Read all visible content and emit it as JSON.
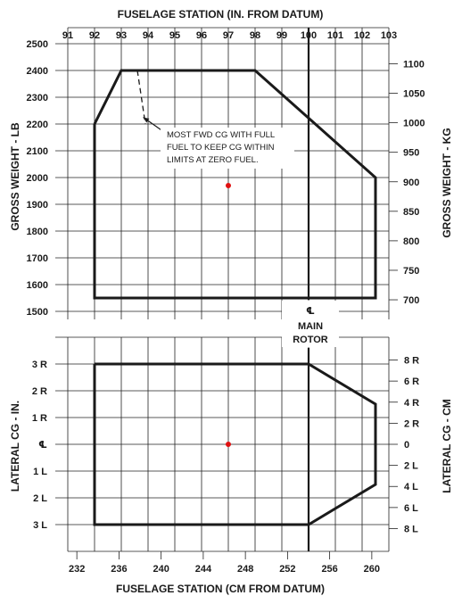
{
  "chart_data": [
    {
      "type": "line",
      "name": "weight-cg-envelope",
      "top_axis": {
        "label": "FUSELAGE STATION (IN. FROM DATUM)",
        "ticks": [
          "91",
          "92",
          "93",
          "94",
          "95",
          "96",
          "97",
          "98",
          "99",
          "100",
          "101",
          "102",
          "103"
        ],
        "range": [
          91,
          103
        ]
      },
      "left_axis": {
        "label": "GROSS WEIGHT - LB",
        "ticks": [
          "2500",
          "2400",
          "2300",
          "2200",
          "2100",
          "2000",
          "1900",
          "1800",
          "1700",
          "1600",
          "1500"
        ],
        "range": [
          1500,
          2500
        ]
      },
      "right_axis": {
        "label": "GROSS WEIGHT - KG",
        "ticks": [
          "1100",
          "1050",
          "1000",
          "950",
          "900",
          "850",
          "800",
          "750",
          "700"
        ],
        "values": [
          1100,
          1050,
          1000,
          950,
          900,
          850,
          800,
          750,
          700
        ]
      },
      "envelope": {
        "x_in": [
          92.0,
          93.0,
          98.0,
          102.5,
          102.5,
          92.0,
          92.0
        ],
        "y_lb": [
          2200,
          2400,
          2400,
          2000,
          1550,
          1550,
          2200
        ]
      },
      "fwd_full_fuel_line": {
        "x_in": [
          93.6,
          93.9
        ],
        "y_lb": [
          2400,
          2200
        ]
      },
      "note_lines": [
        "MOST FWD CG WITH FULL",
        "FUEL TO KEEP CG WITHIN",
        "LIMITS AT ZERO FUEL."
      ],
      "point": {
        "x_in": 97.0,
        "y_lb": 1970,
        "color": "#e01010"
      },
      "grid": true
    },
    {
      "type": "line",
      "name": "lateral-cg-envelope",
      "left_axis": {
        "label": "LATERAL CG - IN.",
        "ticks": [
          "3 R",
          "2 R",
          "1 R",
          "℄",
          "1 L",
          "2 L",
          "3 L"
        ],
        "values": [
          3,
          2,
          1,
          0,
          -1,
          -2,
          -3
        ]
      },
      "right_axis": {
        "label": "LATERAL CG - CM",
        "ticks": [
          "8 R",
          "6 R",
          "4 R",
          "2 R",
          "0",
          "2 L",
          "4 L",
          "6 L",
          "8 L"
        ],
        "values": [
          8,
          6,
          4,
          2,
          0,
          -2,
          -4,
          -6,
          -8
        ]
      },
      "bottom_axis": {
        "label": "FUSELAGE STATION (CM FROM DATUM)",
        "ticks": [
          "232",
          "236",
          "240",
          "244",
          "248",
          "252",
          "256",
          "260"
        ],
        "values": [
          232,
          236,
          240,
          244,
          248,
          252,
          256,
          260
        ]
      },
      "envelope": {
        "x_in": [
          92.0,
          100.0,
          102.5,
          102.5,
          100.0,
          92.0,
          92.0
        ],
        "y_in": [
          3.0,
          3.0,
          1.5,
          -1.5,
          -3.0,
          -3.0,
          3.0
        ]
      },
      "point": {
        "x_in": 97.0,
        "y_in": 0.0,
        "color": "#e01010"
      },
      "grid": true
    }
  ],
  "rotor_label": {
    "symbol": "℄",
    "line1": "MAIN",
    "line2": "ROTOR"
  }
}
